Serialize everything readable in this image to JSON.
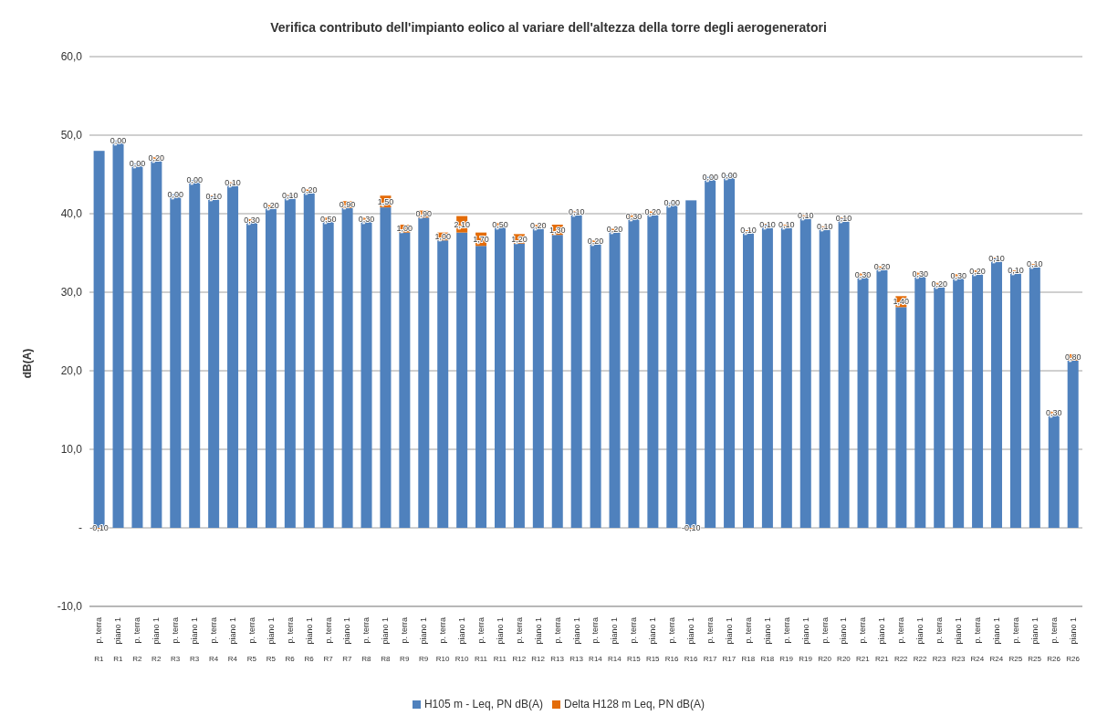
{
  "chart_data": {
    "type": "bar",
    "title": "Verifica contributo dell'impianto eolico al variare dell'altezza della torre degli aerogeneratori",
    "ylabel": "dB(A)",
    "stacked": true,
    "grid": "y",
    "legend": "bottom",
    "categories": [
      "p. terra\nR1",
      "piano 1\nR1",
      "p. terra\nR2",
      "piano 1\nR2",
      "p. terra\nR3",
      "piano 1\nR3",
      "p. terra\nR4",
      "piano 1\nR4",
      "p. terra\nR5",
      "piano 1\nR5",
      "p. terra\nR6",
      "piano 1\nR6",
      "p. terra\nR7",
      "piano 1\nR7",
      "p. terra\nR8",
      "piano 1\nR8",
      "p. terra\nR9",
      "piano 1\nR9",
      "p. terra\nR10",
      "piano 1\nR10",
      "p. terra\nR11",
      "piano 1\nR11",
      "p. terra\nR12",
      "piano 1\nR12",
      "p. terra\nR13",
      "piano 1\nR13",
      "p. terra\nR14",
      "piano 1\nR14",
      "p. terra\nR15",
      "piano 1\nR15",
      "p. terra\nR16",
      "piano 1\nR16",
      "p. terra\nR17",
      "piano 1\nR17",
      "p. terra\nR18",
      "piano 1\nR18",
      "p. terra\nR19",
      "piano 1\nR19",
      "p. terra\nR20",
      "piano 1\nR20",
      "p. terra\nR21",
      "piano 1\nR21",
      "p. terra\nR22",
      "piano 1\nR22",
      "p. terra\nR23",
      "piano 1\nR23",
      "p. terra\nR24",
      "piano 1\nR24",
      "p. terra\nR25",
      "piano 1\nR25",
      "p. terra\nR26",
      "piano 1\nR26"
    ],
    "series": [
      {
        "name": "H105 m - Leq, PN  dB(A)",
        "color": "#4f81bd",
        "values": [
          48.0,
          49.3,
          46.4,
          47.0,
          42.5,
          44.3,
          42.2,
          43.9,
          39.0,
          40.9,
          42.3,
          42.9,
          39.0,
          40.7,
          39.2,
          40.8,
          37.6,
          39.5,
          36.6,
          37.6,
          35.9,
          38.3,
          36.2,
          38.4,
          37.3,
          40.2,
          36.4,
          37.9,
          39.5,
          40.1,
          41.4,
          41.7,
          44.7,
          44.9,
          37.8,
          38.6,
          38.5,
          39.7,
          38.3,
          39.4,
          32.1,
          33.1,
          28.1,
          32.2,
          31.0,
          32.0,
          32.6,
          34.3,
          32.7,
          33.5,
          14.5,
          21.3
        ]
      },
      {
        "name": "Delta H128 m Leq, PN dB(A)",
        "color": "#e36c09",
        "values": [
          -0.1,
          0,
          0,
          0.2,
          0,
          0,
          0.1,
          0.1,
          0.3,
          0.2,
          0.1,
          0.2,
          0.5,
          0.9,
          0.3,
          1.5,
          1.0,
          0.9,
          1.0,
          2.1,
          1.7,
          0.5,
          1.2,
          0.2,
          1.3,
          0.1,
          0.2,
          0.2,
          0.3,
          0.2,
          0,
          -0.1,
          0,
          0,
          0.1,
          0.1,
          0.1,
          0.1,
          0.1,
          0.1,
          0.3,
          0.2,
          1.4,
          0.3,
          0.2,
          0.3,
          0.2,
          0.1,
          0.1,
          0.1,
          0.3,
          0.8
        ],
        "value_labels": [
          "-0,10",
          "0,00",
          "0,00",
          "0,20",
          "0,00",
          "0,00",
          "0,10",
          "0,10",
          "0,30",
          "0,20",
          "0,10",
          "0,20",
          "0,50",
          "0,90",
          "0,30",
          "1,50",
          "1,00",
          "0,90",
          "1,00",
          "2,10",
          "1,70",
          "0,50",
          "1,20",
          "0,20",
          "1,30",
          "0,10",
          "0,20",
          "0,20",
          "0,30",
          "0,20",
          "0,00",
          "-0,10",
          "0,00",
          "0,00",
          "0,10",
          "0,10",
          "0,10",
          "0,10",
          "0,10",
          "0,10",
          "0,30",
          "0,20",
          "1,40",
          "0,30",
          "0,20",
          "0,30",
          "0,20",
          "0,10",
          "0,10",
          "0,10",
          "0,30",
          "0,80"
        ]
      }
    ],
    "ylim": [
      -10,
      60
    ],
    "yticks": [
      {
        "value": -10,
        "label": "-10,0"
      },
      {
        "value": 0,
        "label": "-"
      },
      {
        "value": 10,
        "label": "10,0"
      },
      {
        "value": 20,
        "label": "20,0"
      },
      {
        "value": 30,
        "label": "30,0"
      },
      {
        "value": 40,
        "label": "40,0"
      },
      {
        "value": 50,
        "label": "50,0"
      },
      {
        "value": 60,
        "label": "60,0"
      }
    ]
  }
}
